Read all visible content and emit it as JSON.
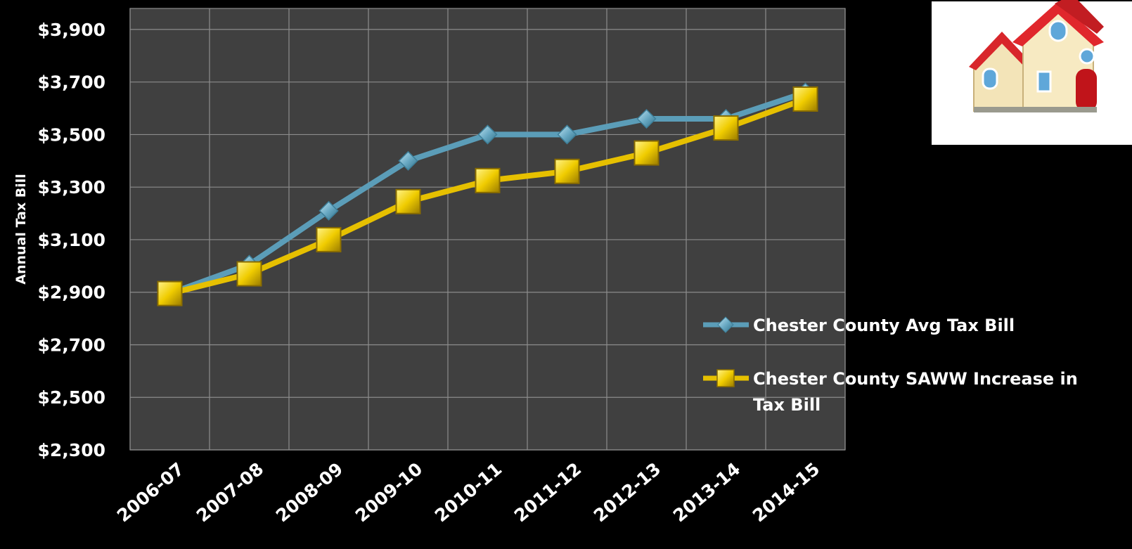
{
  "chart_data": {
    "type": "line",
    "categories": [
      "2006-07",
      "2007-08",
      "2008-09",
      "2009-10",
      "2010-11",
      "2011-12",
      "2012-13",
      "2013-14",
      "2014-15"
    ],
    "ylabel": "Annual Tax Bill",
    "xlabel": "",
    "ylim": [
      2300,
      3980
    ],
    "yticks": [
      2300,
      2500,
      2700,
      2900,
      3100,
      3300,
      3500,
      3700,
      3900
    ],
    "ytick_labels": [
      "$2,300",
      "$2,500",
      "$2,700",
      "$2,900",
      "$3,100",
      "$3,300",
      "$3,500",
      "$3,700",
      "$3,900"
    ],
    "grid": true,
    "legend_position": "right",
    "series": [
      {
        "name": "Chester County Avg Tax Bill",
        "values": [
          2895,
          3005,
          3210,
          3400,
          3500,
          3500,
          3560,
          3560,
          3660
        ],
        "color": "#5b9db8",
        "marker": "diamond"
      },
      {
        "name": "Chester County SAWW Increase in Tax Bill",
        "values": [
          2895,
          2970,
          3100,
          3245,
          3325,
          3360,
          3430,
          3525,
          3635
        ],
        "color": "#e6c000",
        "marker": "square"
      }
    ]
  },
  "decor": {
    "image": "house-icon"
  }
}
